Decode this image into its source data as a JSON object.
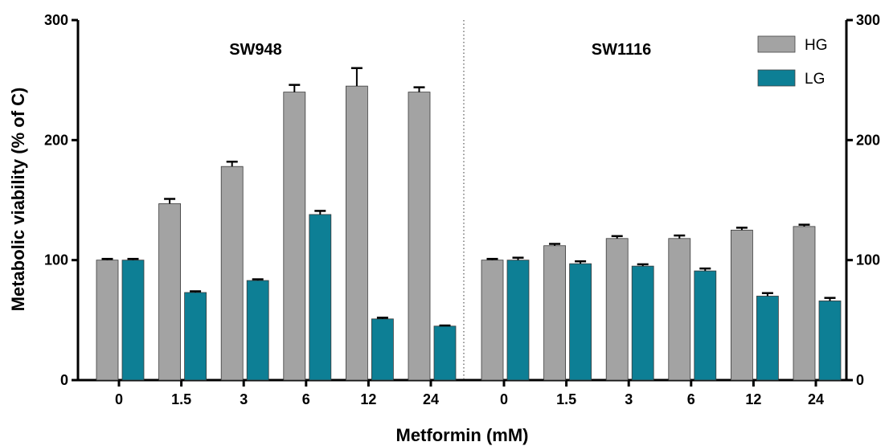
{
  "chart_data": {
    "type": "bar",
    "xlabel": "Metformin (mM)",
    "ylabel": "Metabolic viability (% of C)",
    "ylim": [
      0,
      300
    ],
    "yticks": [
      0,
      100,
      200,
      300
    ],
    "panels": [
      {
        "label": "SW948",
        "categories": [
          "0",
          "1.5",
          "3",
          "6",
          "12",
          "24"
        ],
        "series": [
          {
            "name": "HG",
            "values": [
              100,
              147,
              178,
              240,
              245,
              240
            ],
            "errors": [
              1,
              4,
              4,
              6,
              15,
              4
            ]
          },
          {
            "name": "LG",
            "values": [
              100,
              73,
              83,
              138,
              51,
              45
            ],
            "errors": [
              1,
              1,
              1,
              3,
              1,
              0.5
            ]
          }
        ]
      },
      {
        "label": "SW1116",
        "categories": [
          "0",
          "1.5",
          "3",
          "6",
          "12",
          "24"
        ],
        "series": [
          {
            "name": "HG",
            "values": [
              100,
              112,
              118,
              118,
              125,
              128
            ],
            "errors": [
              1,
              1.5,
              2,
              2.5,
              2,
              1.5
            ]
          },
          {
            "name": "LG",
            "values": [
              100,
              97,
              95,
              91,
              70,
              66
            ],
            "errors": [
              2,
              2,
              1.5,
              2,
              2.5,
              2.5
            ]
          }
        ]
      }
    ],
    "legend": {
      "position": "top-right",
      "entries": [
        {
          "name": "HG",
          "color": "#a3a3a3"
        },
        {
          "name": "LG",
          "color": "#0d7f95"
        }
      ]
    },
    "colors": {
      "HG": "#a3a3a3",
      "LG": "#0d7f95"
    },
    "secondary_y_axis": true,
    "divider": "dotted"
  }
}
